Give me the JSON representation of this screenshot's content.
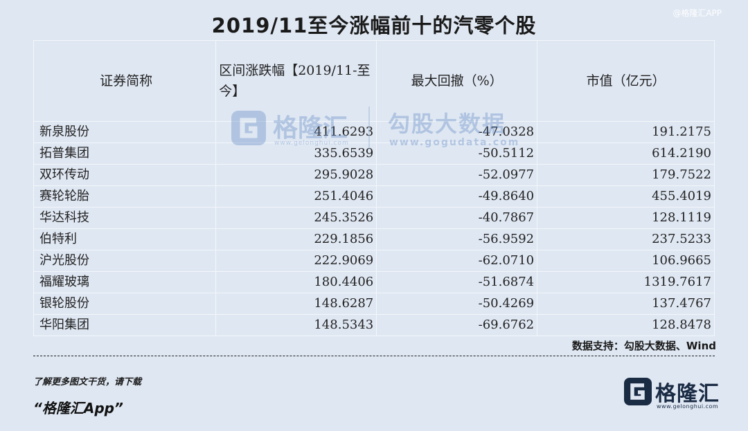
{
  "corner_tag": "@格隆汇APP",
  "title": "2019/11至今涨幅前十的汽零个股",
  "table": {
    "headers": {
      "name": "证券简称",
      "range_change": "区间涨跌幅【2019/11-至今】",
      "max_drawdown": "最大回撤（%）",
      "market_cap": "市值（亿元）"
    },
    "rows": [
      {
        "name": "新泉股份",
        "change": "411.6293",
        "drawdown": "-47.0328",
        "cap": "191.2175"
      },
      {
        "name": "拓普集团",
        "change": "335.6539",
        "drawdown": "-50.5112",
        "cap": "614.2190"
      },
      {
        "name": "双环传动",
        "change": "295.9028",
        "drawdown": "-52.0977",
        "cap": "179.7522"
      },
      {
        "name": "赛轮轮胎",
        "change": "251.4046",
        "drawdown": "-49.8640",
        "cap": "455.4019"
      },
      {
        "name": "华达科技",
        "change": "245.3526",
        "drawdown": "-40.7867",
        "cap": "128.1119"
      },
      {
        "name": "伯特利",
        "change": "229.1856",
        "drawdown": "-56.9592",
        "cap": "237.5233"
      },
      {
        "name": "沪光股份",
        "change": "222.9069",
        "drawdown": "-62.0710",
        "cap": "106.9665"
      },
      {
        "name": "福耀玻璃",
        "change": "180.4406",
        "drawdown": "-51.6874",
        "cap": "1319.7617"
      },
      {
        "name": "银轮股份",
        "change": "148.6287",
        "drawdown": "-50.4269",
        "cap": "137.4767"
      },
      {
        "name": "华阳集团",
        "change": "148.5343",
        "drawdown": "-69.6762",
        "cap": "128.8478"
      }
    ]
  },
  "watermark": {
    "brand": "格隆汇",
    "brand_url": "www.gelonghui.com",
    "partner": "勾股大数据",
    "partner_url": "www.gogudata.com"
  },
  "source": "数据支持：勾股大数据、Wind",
  "footer": {
    "note": "了解更多图文干货，请下载",
    "app_name": "“格隆汇App”",
    "brand_name": "格隆汇",
    "brand_url": "www.gelonghui.com"
  },
  "colors": {
    "background": "#dfe7f2",
    "grid": "#f4f7fb",
    "watermark": "#5b86c4",
    "brand": "#1a2b44"
  },
  "icons": [
    "gelonghui-logo-icon"
  ]
}
